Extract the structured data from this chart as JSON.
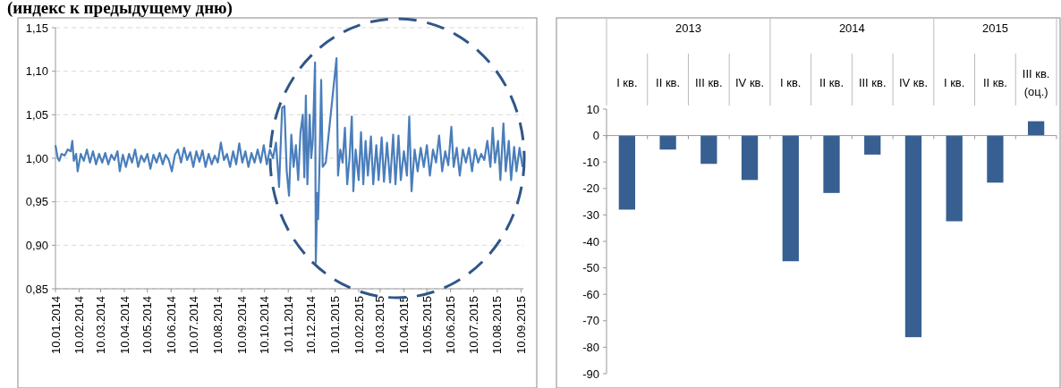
{
  "chart_data": [
    {
      "type": "line",
      "title": "(индекс к предыдущему дню)",
      "grid": "y",
      "line_style": "solid",
      "marker": "none",
      "xlim": [
        "2014-01-10",
        "2015-09-13"
      ],
      "xticks": [
        {
          "value": "2014-01-10",
          "label": "10.01.2014"
        },
        {
          "value": "2014-02-10",
          "label": "10.02.2014"
        },
        {
          "value": "2014-03-10",
          "label": "10.03.2014"
        },
        {
          "value": "2014-04-10",
          "label": "10.04.2014"
        },
        {
          "value": "2014-05-10",
          "label": "10.05.2014"
        },
        {
          "value": "2014-06-10",
          "label": "10.06.2014"
        },
        {
          "value": "2014-07-10",
          "label": "10.07.2014"
        },
        {
          "value": "2014-08-10",
          "label": "10.08.2014"
        },
        {
          "value": "2014-09-10",
          "label": "10.09.2014"
        },
        {
          "value": "2014-10-10",
          "label": "10.10.2014"
        },
        {
          "value": "2014-11-10",
          "label": "10.11.2014"
        },
        {
          "value": "2014-12-10",
          "label": "10.12.2014"
        },
        {
          "value": "2015-01-10",
          "label": "10.01.2015"
        },
        {
          "value": "2015-02-10",
          "label": "10.02.2015"
        },
        {
          "value": "2015-03-10",
          "label": "10.03.2015"
        },
        {
          "value": "2015-04-10",
          "label": "10.04.2015"
        },
        {
          "value": "2015-05-10",
          "label": "10.05.2015"
        },
        {
          "value": "2015-06-10",
          "label": "10.06.2015"
        },
        {
          "value": "2015-07-10",
          "label": "10.07.2015"
        },
        {
          "value": "2015-08-10",
          "label": "10.08.2015"
        },
        {
          "value": "2015-09-10",
          "label": "10.09.2015"
        }
      ],
      "ylim": [
        0.85,
        1.15
      ],
      "yticks": [
        {
          "value": 0.85,
          "label": "0,85"
        },
        {
          "value": 0.9,
          "label": "0,90"
        },
        {
          "value": 0.95,
          "label": "0,95"
        },
        {
          "value": 1.0,
          "label": "1,00"
        },
        {
          "value": 1.05,
          "label": "1,05"
        },
        {
          "value": 1.1,
          "label": "1,10"
        },
        {
          "value": 1.15,
          "label": "1,15"
        }
      ],
      "series": [
        {
          "color": "#4a7ebb",
          "x": [
            "2014-01-10",
            "2014-01-13",
            "2014-01-15",
            "2014-01-18",
            "2014-01-22",
            "2014-01-26",
            "2014-01-30",
            "2014-02-01",
            "2014-02-03",
            "2014-02-06",
            "2014-02-08",
            "2014-02-12",
            "2014-02-16",
            "2014-02-20",
            "2014-02-24",
            "2014-02-28",
            "2014-03-04",
            "2014-03-08",
            "2014-03-12",
            "2014-03-16",
            "2014-03-20",
            "2014-03-24",
            "2014-03-28",
            "2014-04-01",
            "2014-04-04",
            "2014-04-08",
            "2014-04-12",
            "2014-04-16",
            "2014-04-20",
            "2014-04-24",
            "2014-04-28",
            "2014-05-02",
            "2014-05-06",
            "2014-05-10",
            "2014-05-14",
            "2014-05-18",
            "2014-05-22",
            "2014-05-26",
            "2014-05-30",
            "2014-06-03",
            "2014-06-07",
            "2014-06-11",
            "2014-06-15",
            "2014-06-19",
            "2014-06-23",
            "2014-06-27",
            "2014-07-01",
            "2014-07-05",
            "2014-07-09",
            "2014-07-13",
            "2014-07-17",
            "2014-07-21",
            "2014-07-25",
            "2014-07-29",
            "2014-08-02",
            "2014-08-06",
            "2014-08-10",
            "2014-08-14",
            "2014-08-18",
            "2014-08-22",
            "2014-08-26",
            "2014-08-30",
            "2014-09-03",
            "2014-09-07",
            "2014-09-11",
            "2014-09-15",
            "2014-09-19",
            "2014-09-23",
            "2014-09-27",
            "2014-10-01",
            "2014-10-05",
            "2014-10-09",
            "2014-10-13",
            "2014-10-17",
            "2014-10-21",
            "2014-10-25",
            "2014-10-29",
            "2014-11-02",
            "2014-11-05",
            "2014-11-08",
            "2014-11-11",
            "2014-11-14",
            "2014-11-17",
            "2014-11-20",
            "2014-11-23",
            "2014-11-26",
            "2014-11-29",
            "2014-12-01",
            "2014-12-03",
            "2014-12-05",
            "2014-12-08",
            "2014-12-10",
            "2014-12-12",
            "2014-12-15",
            "2014-12-16",
            "2014-12-18",
            "2014-12-19",
            "2014-12-21",
            "2014-12-23",
            "2014-12-25",
            "2014-12-29",
            "2015-01-12",
            "2015-01-14",
            "2015-01-17",
            "2015-01-20",
            "2015-01-23",
            "2015-01-26",
            "2015-01-29",
            "2015-02-01",
            "2015-02-03",
            "2015-02-06",
            "2015-02-10",
            "2015-02-13",
            "2015-02-16",
            "2015-02-19",
            "2015-02-22",
            "2015-02-26",
            "2015-03-01",
            "2015-03-05",
            "2015-03-08",
            "2015-03-12",
            "2015-03-15",
            "2015-03-19",
            "2015-03-23",
            "2015-03-27",
            "2015-03-30",
            "2015-04-03",
            "2015-04-06",
            "2015-04-10",
            "2015-04-14",
            "2015-04-17",
            "2015-04-20",
            "2015-04-24",
            "2015-04-28",
            "2015-05-02",
            "2015-05-06",
            "2015-05-10",
            "2015-05-14",
            "2015-05-18",
            "2015-05-22",
            "2015-05-26",
            "2015-05-30",
            "2015-06-03",
            "2015-06-07",
            "2015-06-11",
            "2015-06-14",
            "2015-06-18",
            "2015-06-22",
            "2015-06-26",
            "2015-06-30",
            "2015-07-04",
            "2015-07-08",
            "2015-07-12",
            "2015-07-16",
            "2015-07-20",
            "2015-07-24",
            "2015-07-28",
            "2015-08-01",
            "2015-08-04",
            "2015-08-07",
            "2015-08-11",
            "2015-08-14",
            "2015-08-18",
            "2015-08-21",
            "2015-08-25",
            "2015-08-28",
            "2015-09-01",
            "2015-09-04",
            "2015-09-08",
            "2015-09-12"
          ],
          "values": [
            1.015,
            1.0,
            0.997,
            1.005,
            1.003,
            1.01,
            1.008,
            1.02,
            0.997,
            1.005,
            0.985,
            1.005,
            0.997,
            1.01,
            0.995,
            1.008,
            0.993,
            1.005,
            0.995,
            1.006,
            0.993,
            1.004,
            0.998,
            1.008,
            0.985,
            1.004,
            0.99,
            1.005,
            0.995,
            1.01,
            0.99,
            1.003,
            0.996,
            1.005,
            0.988,
            1.004,
            0.995,
            1.006,
            0.993,
            1.004,
            0.998,
            0.985,
            1.004,
            1.01,
            0.995,
            1.012,
            0.998,
            1.007,
            0.99,
            1.008,
            0.996,
            1.009,
            0.99,
            1.005,
            0.993,
            1.003,
            0.995,
            1.018,
            0.998,
            1.005,
            0.99,
            1.008,
            0.993,
            1.017,
            0.995,
            1.008,
            0.99,
            1.006,
            0.995,
            1.01,
            0.995,
            1.015,
            0.993,
            1.01,
            1.0,
            1.018,
            0.967,
            1.058,
            1.06,
            0.985,
            0.957,
            1.027,
            0.99,
            1.015,
            0.975,
            1.03,
            1.05,
            0.978,
            1.072,
            0.97,
            1.05,
            1.0,
            1.02,
            1.11,
            0.88,
            0.96,
            0.93,
            1.0,
            1.09,
            0.99,
            0.995,
            1.115,
            0.98,
            1.01,
            0.995,
            1.035,
            0.97,
            1.0,
            1.048,
            0.962,
            1.01,
            0.975,
            1.03,
            0.97,
            1.02,
            0.98,
            1.025,
            0.97,
            1.015,
            0.975,
            1.024,
            0.973,
            1.018,
            0.972,
            1.027,
            0.97,
            1.026,
            0.975,
            1.008,
            0.98,
            1.048,
            0.962,
            1.01,
            0.985,
            1.012,
            0.99,
            1.015,
            0.98,
            1.01,
            0.995,
            1.026,
            0.985,
            1.008,
            0.992,
            1.036,
            0.99,
            1.012,
            0.98,
            1.01,
            0.995,
            1.012,
            0.985,
            1.01,
            0.995,
            1.005,
            0.998,
            1.02,
            0.99,
            1.035,
            0.995,
            1.02,
            0.975,
            1.04,
            0.985,
            1.02,
            0.975,
            1.013,
            0.985,
            1.012,
            0.99
          ]
        }
      ]
    },
    {
      "type": "bar",
      "annotations": [
        "2013",
        "2014",
        "2015"
      ],
      "ylim": [
        -90,
        10
      ],
      "yticks": [
        -90,
        -80,
        -70,
        -60,
        -50,
        -40,
        -30,
        -20,
        -10,
        0,
        10
      ],
      "categories": [
        "I кв.",
        "II кв.",
        "III кв.",
        "IV кв.",
        "I кв.",
        "II кв.",
        "III кв.",
        "IV кв.",
        "I кв.",
        "II кв.",
        "III кв. (оц.)"
      ],
      "series": [
        {
          "color": "#375f91",
          "values": [
            -28,
            -5.3,
            -10.7,
            -16.8,
            -47.5,
            -21.7,
            -7.2,
            -76.2,
            -32.4,
            -17.8,
            5.4
          ]
        }
      ]
    }
  ]
}
